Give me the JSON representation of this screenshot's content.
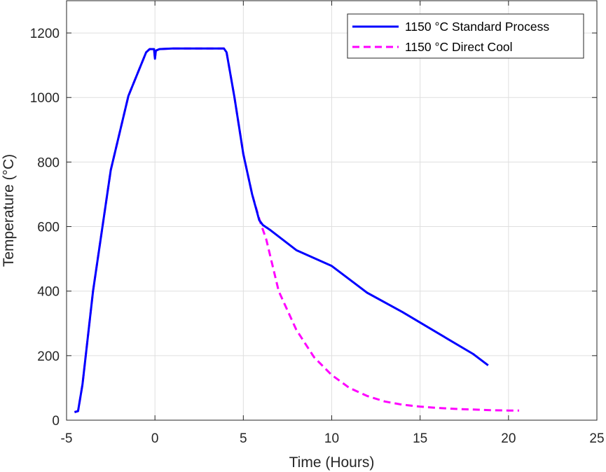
{
  "chart_data": {
    "type": "line",
    "xlabel": "Time (Hours)",
    "ylabel": "Temperature (°C)",
    "xlim": [
      -5,
      25
    ],
    "ylim": [
      0,
      1300
    ],
    "xticks": [
      -5,
      0,
      5,
      10,
      15,
      20,
      25
    ],
    "yticks": [
      0,
      200,
      400,
      600,
      800,
      1000,
      1200
    ],
    "grid": true,
    "legend_position": "top-right",
    "series": [
      {
        "name": "1150 °C Standard Process",
        "color": "#0000ff",
        "style": "solid",
        "x": [
          -4.55,
          -4.35,
          -4.1,
          -3.5,
          -2.5,
          -1.5,
          -0.5,
          -0.3,
          -0.05,
          0.0,
          0.05,
          0.25,
          1.0,
          2.0,
          3.0,
          3.9,
          4.05,
          4.5,
          5.0,
          5.5,
          5.9,
          6.1,
          6.5,
          8.0,
          10.0,
          12.0,
          14.0,
          16.0,
          18.0,
          18.85
        ],
        "y": [
          25,
          28,
          110,
          400,
          775,
          1005,
          1140,
          1150,
          1150,
          1120,
          1145,
          1150,
          1152,
          1152,
          1152,
          1152,
          1140,
          1000,
          825,
          700,
          620,
          605,
          590,
          527,
          478,
          395,
          335,
          270,
          205,
          170
        ]
      },
      {
        "name": "1150 °C Direct Cool",
        "color": "#ff00ff",
        "style": "dashed",
        "x": [
          -4.55,
          -4.35,
          -4.1,
          -3.5,
          -2.5,
          -1.5,
          -0.5,
          -0.3,
          -0.05,
          0.0,
          0.05,
          0.25,
          1.0,
          2.0,
          3.0,
          3.9,
          4.05,
          4.5,
          5.0,
          5.5,
          5.95,
          6.3,
          7.0,
          8.0,
          9.0,
          10.0,
          11.0,
          12.0,
          13.0,
          14.0,
          15.0,
          16.0,
          17.0,
          18.0,
          19.0,
          20.0,
          20.6
        ],
        "y": [
          25,
          28,
          110,
          400,
          775,
          1005,
          1140,
          1150,
          1150,
          1120,
          1145,
          1150,
          1152,
          1152,
          1152,
          1152,
          1140,
          1000,
          825,
          700,
          615,
          560,
          400,
          280,
          195,
          140,
          100,
          75,
          58,
          48,
          42,
          38,
          35,
          33,
          31,
          30,
          30
        ]
      }
    ]
  }
}
